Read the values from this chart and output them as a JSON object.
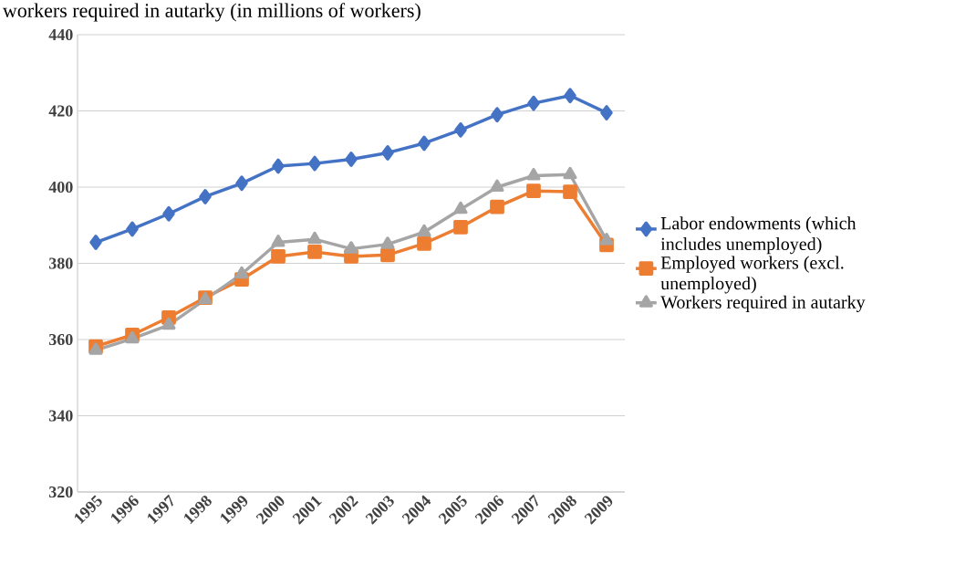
{
  "chart_data": {
    "type": "line",
    "title": "workers required in autarky (in millions of workers)",
    "categories": [
      "1995",
      "1996",
      "1997",
      "1998",
      "1999",
      "2000",
      "2001",
      "2002",
      "2003",
      "2004",
      "2005",
      "2006",
      "2007",
      "2008",
      "2009"
    ],
    "ylim": [
      320,
      440
    ],
    "yticks": [
      320,
      340,
      360,
      380,
      400,
      420,
      440
    ],
    "grid": "y",
    "legend": "right",
    "line_style": "solid",
    "series": [
      {
        "name": "Labor endowments (which includes unemployed)",
        "color": "#4472c4",
        "marker": "diamond",
        "values": [
          385.5,
          389,
          393,
          397.5,
          401,
          405.5,
          406.2,
          407.3,
          409,
          411.5,
          415,
          419,
          422,
          424,
          419.5
        ]
      },
      {
        "name": "Employed workers (excl. unemployed)",
        "color": "#ed7d31",
        "marker": "square",
        "values": [
          358.2,
          361.2,
          365.8,
          371,
          375.8,
          381.8,
          383,
          381.8,
          382.2,
          385.2,
          389.5,
          394.8,
          399,
          398.8,
          384.8
        ]
      },
      {
        "name": "Workers required in autarky",
        "color": "#a5a5a5",
        "marker": "triangle",
        "values": [
          357.2,
          360.2,
          363.8,
          370.5,
          377.2,
          385.5,
          386.3,
          383.8,
          385,
          388.2,
          394.2,
          400,
          403,
          403.3,
          386
        ]
      }
    ]
  }
}
